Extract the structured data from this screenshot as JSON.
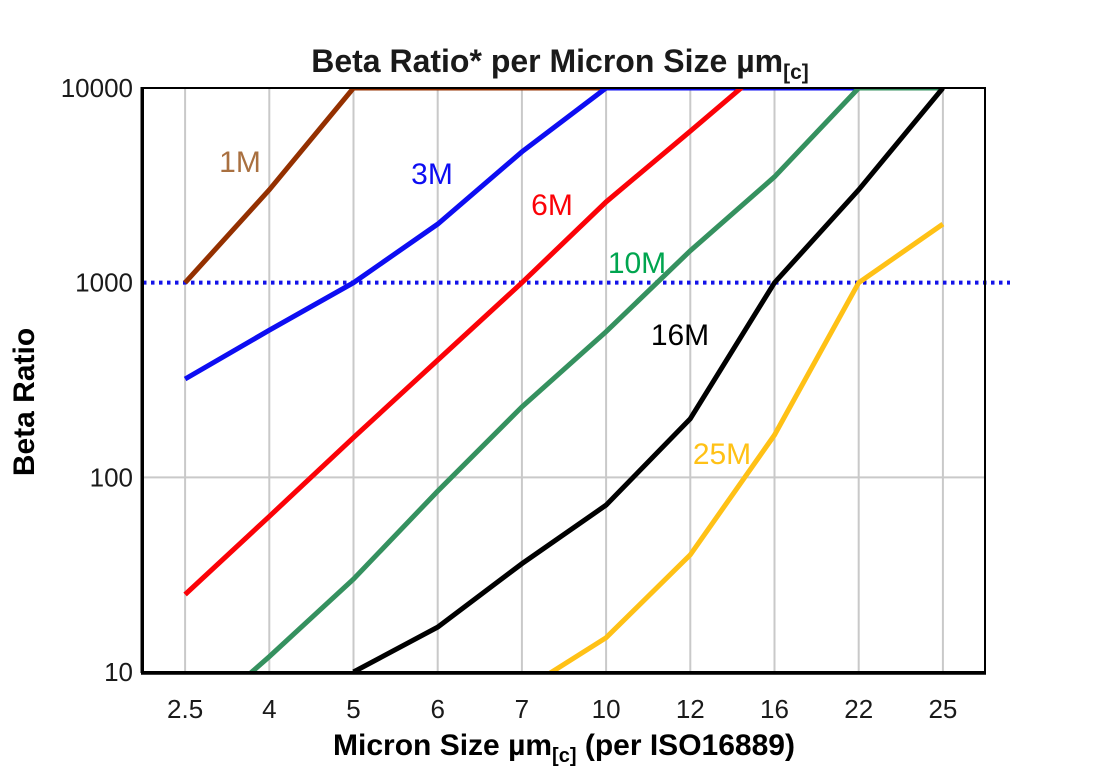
{
  "chart_data": {
    "type": "line",
    "title": "Beta Ratio* per Micron Size µm[c]",
    "xlabel": "Micron Size µm[c] (per ISO16889)",
    "ylabel": "Beta Ratio",
    "x_categories": [
      "2.5",
      "4",
      "5",
      "6",
      "7",
      "10",
      "12",
      "16",
      "22",
      "25"
    ],
    "y_scale": "log",
    "ylim": [
      10,
      10000
    ],
    "y_ticks": [
      "10",
      "100",
      "1000",
      "10000"
    ],
    "grid": {
      "vertical": true,
      "horizontal_values": [
        100
      ],
      "color": "#c9c9c9"
    },
    "reference_line": {
      "value": 1000,
      "style": "dotted",
      "color": "#1313e8"
    },
    "values_outside_ylim_are_clipped": true,
    "series": [
      {
        "name": "1M",
        "color": "#943000",
        "label_color": "#a97040",
        "values": [
          1000,
          3000,
          10000,
          10000,
          10000,
          10000,
          10000,
          10000,
          10000,
          10000
        ]
      },
      {
        "name": "3M",
        "color": "#0d0df2",
        "label_color": "#0d0df2",
        "values": [
          320,
          570,
          1000,
          2000,
          4700,
          10000,
          10000,
          10000,
          10000,
          10000
        ]
      },
      {
        "name": "6M",
        "color": "#fb0207",
        "label_color": "#fb0207",
        "values": [
          25,
          63,
          160,
          400,
          1000,
          2600,
          6000,
          14000,
          null,
          null
        ]
      },
      {
        "name": "10M",
        "color": "#35915f",
        "label_color": "#00a54f",
        "values": [
          5,
          12,
          30,
          85,
          230,
          560,
          1460,
          3500,
          10000,
          10000
        ]
      },
      {
        "name": "16M",
        "color": "#000000",
        "label_color": "#000000",
        "values": [
          null,
          null,
          10,
          17,
          36,
          72,
          200,
          1000,
          3000,
          10000
        ]
      },
      {
        "name": "25M",
        "color": "#ffc116",
        "label_color": "#ffc116",
        "values": [
          null,
          null,
          null,
          null,
          8,
          15,
          40,
          165,
          1000,
          2000
        ]
      }
    ]
  }
}
